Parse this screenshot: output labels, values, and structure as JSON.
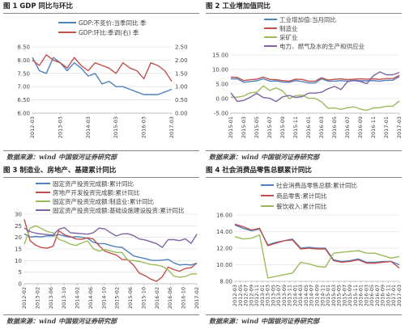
{
  "chart_data": [
    {
      "type": "line",
      "title": "图 1   GDP 同比与环比",
      "source": "数据来源：wind  中国银河证券研究部",
      "x": [
        "2012-03",
        "2012-06",
        "2012-09",
        "2012-12",
        "2013-03",
        "2013-06",
        "2013-09",
        "2013-12",
        "2014-03",
        "2014-06",
        "2014-09",
        "2014-12",
        "2015-03",
        "2015-06",
        "2015-09",
        "2015-12",
        "2016-03",
        "2016-06",
        "2016-09",
        "2016-12",
        "2017-03"
      ],
      "xticks": [
        "2012-03",
        "2013-03",
        "2014-03",
        "2015-03",
        "2016-03",
        "2017-03"
      ],
      "ylim": [
        6.0,
        8.5
      ],
      "yticks": [
        "6.00",
        "6.50",
        "7.00",
        "7.50",
        "8.00",
        "8.50"
      ],
      "y2lim": [
        0.0,
        2.5
      ],
      "y2ticks": [
        "0.00",
        "0.50",
        "1.00",
        "1.50",
        "2.00",
        "2.50"
      ],
      "legend_position": "top",
      "series": [
        {
          "name": "GDP:不变价:当季同比 季",
          "color": "#4f81bd",
          "axis": "left",
          "values": [
            8.1,
            7.6,
            7.5,
            8.1,
            7.9,
            7.6,
            7.9,
            7.7,
            7.4,
            7.5,
            7.1,
            7.2,
            7.0,
            7.0,
            6.9,
            6.8,
            6.7,
            6.7,
            6.7,
            6.8,
            6.9
          ]
        },
        {
          "name": "GDP:环比:季调(右) 季",
          "color": "#c0504d",
          "axis": "right",
          "values": [
            2.0,
            1.8,
            2.2,
            2.0,
            1.9,
            1.7,
            2.1,
            1.8,
            1.6,
            1.9,
            1.8,
            1.7,
            1.5,
            1.9,
            1.7,
            1.6,
            1.3,
            1.9,
            1.8,
            1.6,
            1.2
          ]
        }
      ]
    },
    {
      "type": "line",
      "title": "图 2   工业增加值同比",
      "source": "数据来源：wind  中国银河证券研究部",
      "x": [
        "2015-01",
        "2015-02",
        "2015-03",
        "2015-04",
        "2015-05",
        "2015-06",
        "2015-07",
        "2015-08",
        "2015-09",
        "2015-10",
        "2015-11",
        "2015-12",
        "2016-01",
        "2016-02",
        "2016-03",
        "2016-04",
        "2016-05",
        "2016-06",
        "2016-07",
        "2016-08",
        "2016-09",
        "2016-10",
        "2016-11",
        "2016-12",
        "2017-01",
        "2017-02",
        "2017-03"
      ],
      "xticks": [
        "2015-01",
        "2015-03",
        "2015-05",
        "2015-07",
        "2015-09",
        "2015-11",
        "2016-01",
        "2016-03",
        "2016-05",
        "2016-07",
        "2016-09",
        "2016-11",
        "2017-01",
        "2017-03"
      ],
      "ylim": [
        -5.0,
        15.0
      ],
      "yticks": [
        "-5.00",
        "0.00",
        "5.00",
        "10.00",
        "15.00"
      ],
      "legend_position": "top",
      "series": [
        {
          "name": "工业增加值:当月同比",
          "color": "#4f81bd",
          "values": [
            6.8,
            6.8,
            5.6,
            5.9,
            6.1,
            6.8,
            6.0,
            6.1,
            5.7,
            5.6,
            6.2,
            5.9,
            5.4,
            5.4,
            6.8,
            6.0,
            6.0,
            6.2,
            6.0,
            6.3,
            6.1,
            6.1,
            6.2,
            6.0,
            6.3,
            6.3,
            7.6
          ]
        },
        {
          "name": "制造业",
          "color": "#c0504d",
          "values": [
            7.4,
            7.3,
            6.2,
            6.5,
            6.7,
            7.4,
            6.6,
            6.5,
            6.2,
            6.0,
            6.7,
            6.6,
            6.0,
            6.0,
            7.2,
            6.4,
            6.6,
            6.8,
            6.5,
            6.7,
            6.8,
            6.7,
            6.8,
            6.6,
            6.9,
            6.9,
            8.0
          ]
        },
        {
          "name": "采矿业",
          "color": "#9bbb59",
          "values": [
            0.5,
            0.5,
            0.9,
            2.0,
            2.2,
            4.4,
            2.8,
            3.7,
            2.6,
            0.0,
            1.0,
            1.2,
            0.1,
            0.1,
            -1.1,
            -3.3,
            -3.2,
            -3.7,
            -3.1,
            -2.8,
            -3.6,
            -4.0,
            -3.2,
            -3.1,
            -2.6,
            -2.6,
            -0.8
          ]
        },
        {
          "name": "电力、燃气及水的生产和供应业",
          "color": "#8064a2",
          "values": [
            2.0,
            -1.0,
            -0.6,
            0.5,
            1.8,
            0.4,
            0.1,
            -1.0,
            0.6,
            1.1,
            0.4,
            0.7,
            1.9,
            1.9,
            2.2,
            3.4,
            4.2,
            3.1,
            5.8,
            6.2,
            5.9,
            5.1,
            7.9,
            9.2,
            8.2,
            8.2,
            9.0
          ]
        }
      ]
    },
    {
      "type": "line",
      "title": "图 3   制造业、房地产、基建累计同比",
      "source": "数据来源：wind  中国银河证券研究部",
      "x": [
        "2012-02",
        "2012-04",
        "2012-06",
        "2012-08",
        "2012-10",
        "2012-12",
        "2013-02",
        "2013-04",
        "2013-06",
        "2013-08",
        "2013-10",
        "2013-12",
        "2014-02",
        "2014-04",
        "2014-06",
        "2014-08",
        "2014-10",
        "2014-12",
        "2015-02",
        "2015-04",
        "2015-06",
        "2015-08",
        "2015-10",
        "2015-12",
        "2016-02",
        "2016-04",
        "2016-06",
        "2016-08",
        "2016-10",
        "2016-12",
        "2017-02"
      ],
      "xticks": [
        "2012-02",
        "2013-02",
        "2013-06",
        "2013-10",
        "2014-02",
        "2014-06",
        "2014-10",
        "2015-02",
        "2015-06",
        "2015-10",
        "2016-02",
        "2016-06",
        "2016-10",
        "2017-02"
      ],
      "ylim": [
        0,
        30
      ],
      "yticks": [
        "0",
        "5",
        "10",
        "15",
        "20",
        "25",
        "30"
      ],
      "legend_position": "top",
      "series": [
        {
          "name": "固定资产投资完成额:累计同比",
          "color": "#4f81bd",
          "values": [
            21.5,
            20.2,
            20.4,
            20.2,
            20.7,
            20.6,
            21.2,
            20.6,
            20.1,
            20.3,
            20.1,
            19.6,
            17.9,
            17.3,
            17.3,
            16.5,
            15.9,
            15.7,
            13.9,
            12.0,
            11.4,
            10.9,
            10.2,
            10.0,
            10.2,
            10.5,
            9.0,
            8.1,
            8.3,
            8.1,
            8.9
          ]
        },
        {
          "name": "房地产开发投资完成额:累计同比",
          "color": "#c0504d",
          "values": [
            27.8,
            18.6,
            16.6,
            15.6,
            15.4,
            16.2,
            22.8,
            21.1,
            20.3,
            19.3,
            19.2,
            19.8,
            19.3,
            16.4,
            14.1,
            13.2,
            12.4,
            10.5,
            10.4,
            8.0,
            4.6,
            3.5,
            2.0,
            1.0,
            3.0,
            7.2,
            6.1,
            5.4,
            6.6,
            6.9,
            8.9
          ]
        },
        {
          "name": "固定资产投资完成额:制造业:累计同比",
          "color": "#9bbb59",
          "values": [
            17.0,
            24.0,
            25.0,
            23.8,
            22.5,
            22.0,
            19.2,
            18.3,
            17.1,
            16.5,
            17.6,
            18.5,
            15.1,
            14.1,
            14.8,
            14.2,
            13.5,
            13.5,
            10.0,
            10.0,
            9.6,
            9.0,
            8.3,
            8.1,
            7.5,
            6.0,
            3.3,
            2.8,
            3.1,
            4.2,
            4.3
          ]
        },
        {
          "name": "固定资产投资完成额:基础设施建设投资:累计同比",
          "color": "#8064a2",
          "values": [
            24.0,
            22.5,
            21.8,
            21.5,
            21.2,
            21.0,
            23.5,
            24.2,
            22.0,
            21.8,
            21.6,
            21.4,
            22.0,
            24.0,
            23.7,
            22.0,
            20.6,
            21.5,
            21.6,
            20.8,
            19.3,
            18.9,
            18.1,
            17.3,
            15.7,
            19.0,
            19.0,
            18.6,
            19.4,
            17.4,
            21.4
          ]
        }
      ]
    },
    {
      "type": "line",
      "title": "图 4   社会消费品零售总额累计同比",
      "source": "数据来源：wind  中国银河证券研究部",
      "x": [
        "2012-03",
        "2012-06",
        "2012-09",
        "2012-12",
        "2013-03",
        "2013-06",
        "2013-09",
        "2013-12",
        "2014-03",
        "2014-06",
        "2014-09",
        "2014-12",
        "2015-03",
        "2015-06",
        "2015-09",
        "2015-12",
        "2016-03",
        "2016-06",
        "2016-09",
        "2016-12",
        "2017-03"
      ],
      "xticks": [
        "2012-03",
        "2012-05",
        "2012-07",
        "2012-09",
        "2012-11",
        "2013-01",
        "2013-03",
        "2013-05",
        "2013-07",
        "2013-09",
        "2013-11",
        "2014-01",
        "2014-03",
        "2014-05",
        "2014-07",
        "2014-09",
        "2014-11",
        "2015-01",
        "2015-03",
        "2015-05",
        "2015-07",
        "2015-09",
        "2015-11",
        "2016-01",
        "2016-03",
        "2016-05",
        "2016-07",
        "2016-09",
        "2016-11",
        "2017-01",
        "2017-03"
      ],
      "ylim": [
        8.0,
        16.0
      ],
      "yticks": [
        "8.00",
        "10.00",
        "12.00",
        "14.00",
        "16.00"
      ],
      "legend_position": "top",
      "series": [
        {
          "name": "社会消费品零售总额:累计同比",
          "color": "#4f81bd",
          "values": [
            14.8,
            14.4,
            14.1,
            14.3,
            12.4,
            12.7,
            12.9,
            13.1,
            12.0,
            12.1,
            12.0,
            12.0,
            10.6,
            10.4,
            10.5,
            10.7,
            10.3,
            10.3,
            10.4,
            10.4,
            10.0
          ]
        },
        {
          "name": "商品零售:累计同比",
          "color": "#c0504d",
          "values": [
            14.9,
            14.6,
            14.2,
            14.4,
            12.3,
            12.6,
            12.9,
            13.0,
            11.9,
            12.0,
            11.9,
            11.9,
            10.5,
            10.3,
            10.4,
            10.6,
            10.2,
            10.2,
            10.3,
            10.4,
            9.6
          ]
        },
        {
          "name": "餐饮收入:累计同比",
          "color": "#9bbb59",
          "values": [
            13.4,
            13.1,
            13.2,
            13.6,
            8.4,
            8.6,
            8.8,
            9.0,
            10.3,
            10.1,
            9.8,
            9.7,
            11.4,
            11.5,
            11.6,
            11.7,
            11.4,
            11.4,
            11.1,
            10.8,
            11.0
          ]
        }
      ]
    }
  ]
}
